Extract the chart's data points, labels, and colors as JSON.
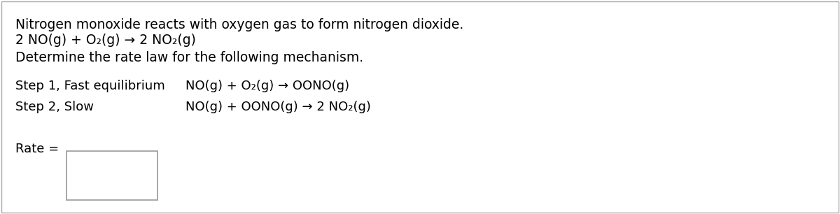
{
  "background_color": "#ffffff",
  "border_color": "#aaaaaa",
  "box_border_color": "#999999",
  "text_color": "#000000",
  "title_line": "Nitrogen monoxide reacts with oxygen gas to form nitrogen dioxide.",
  "equation_line": "2 NO(g) + O₂(g) → 2 NO₂(g)",
  "question_line": "Determine the rate law for the following mechanism.",
  "step1_label": "Step 1, Fast equilibrium",
  "step1_eq": "NO(g) + O₂(g) → OONO(g)",
  "step2_label": "Step 2, Slow",
  "step2_eq": "NO(g) + OONO(g) → 2 NO₂(g)",
  "rate_label": "Rate =",
  "font_size_main": 13.5,
  "font_size_steps": 13.0,
  "font_family": "DejaVu Sans"
}
